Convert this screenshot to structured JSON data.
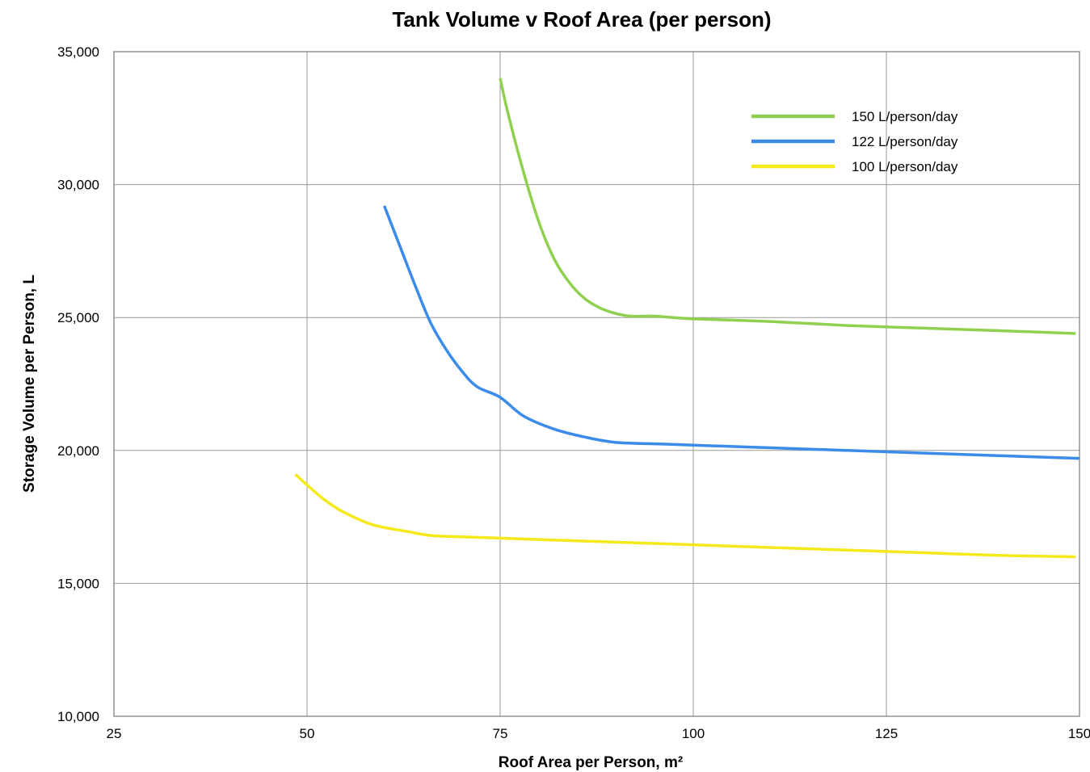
{
  "chart_data": {
    "type": "line",
    "title": "Tank Volume v  Roof Area (per person)",
    "xlabel": "Roof Area per Person, m²",
    "ylabel": "Storage Volume per Person, L",
    "xlim": [
      25,
      150
    ],
    "ylim": [
      10000,
      35000
    ],
    "xticks": [
      25,
      50,
      75,
      100,
      125,
      150
    ],
    "yticks": [
      10000,
      15000,
      20000,
      25000,
      30000,
      35000
    ],
    "xtick_labels": [
      "25",
      "50",
      "75",
      "100",
      "125",
      "150"
    ],
    "ytick_labels": [
      "10,000",
      "15,000",
      "20,000",
      "25,000",
      "30,000",
      "35,000"
    ],
    "grid": true,
    "legend_position": "top-right",
    "series": [
      {
        "name": "150 L/person/day",
        "color": "#8fd14f",
        "points": [
          [
            75,
            34000
          ],
          [
            76,
            32700
          ],
          [
            78,
            30500
          ],
          [
            80,
            28600
          ],
          [
            82,
            27200
          ],
          [
            84,
            26300
          ],
          [
            86,
            25700
          ],
          [
            88,
            25350
          ],
          [
            90,
            25150
          ],
          [
            92,
            25050
          ],
          [
            95,
            25050
          ],
          [
            100,
            24950
          ],
          [
            110,
            24850
          ],
          [
            120,
            24700
          ],
          [
            130,
            24600
          ],
          [
            140,
            24500
          ],
          [
            149.5,
            24400
          ]
        ]
      },
      {
        "name": "122 L/person/day",
        "color": "#3b8beb",
        "points": [
          [
            60,
            29200
          ],
          [
            62,
            27700
          ],
          [
            64,
            26200
          ],
          [
            66,
            24800
          ],
          [
            68,
            23800
          ],
          [
            70,
            23000
          ],
          [
            72,
            22400
          ],
          [
            75,
            22000
          ],
          [
            78,
            21300
          ],
          [
            82,
            20800
          ],
          [
            86,
            20500
          ],
          [
            90,
            20300
          ],
          [
            95,
            20250
          ],
          [
            100,
            20200
          ],
          [
            110,
            20100
          ],
          [
            120,
            20000
          ],
          [
            130,
            19900
          ],
          [
            140,
            19800
          ],
          [
            150,
            19700
          ]
        ]
      },
      {
        "name": "100 L/person/day",
        "color": "#f5e81b",
        "points": [
          [
            48.5,
            19100
          ],
          [
            50,
            18700
          ],
          [
            52,
            18200
          ],
          [
            54,
            17800
          ],
          [
            56,
            17500
          ],
          [
            58,
            17250
          ],
          [
            60,
            17100
          ],
          [
            63,
            16950
          ],
          [
            66,
            16800
          ],
          [
            70,
            16750
          ],
          [
            80,
            16650
          ],
          [
            90,
            16550
          ],
          [
            100,
            16450
          ],
          [
            110,
            16350
          ],
          [
            120,
            16250
          ],
          [
            130,
            16150
          ],
          [
            140,
            16050
          ],
          [
            149.5,
            16000
          ]
        ]
      }
    ]
  }
}
